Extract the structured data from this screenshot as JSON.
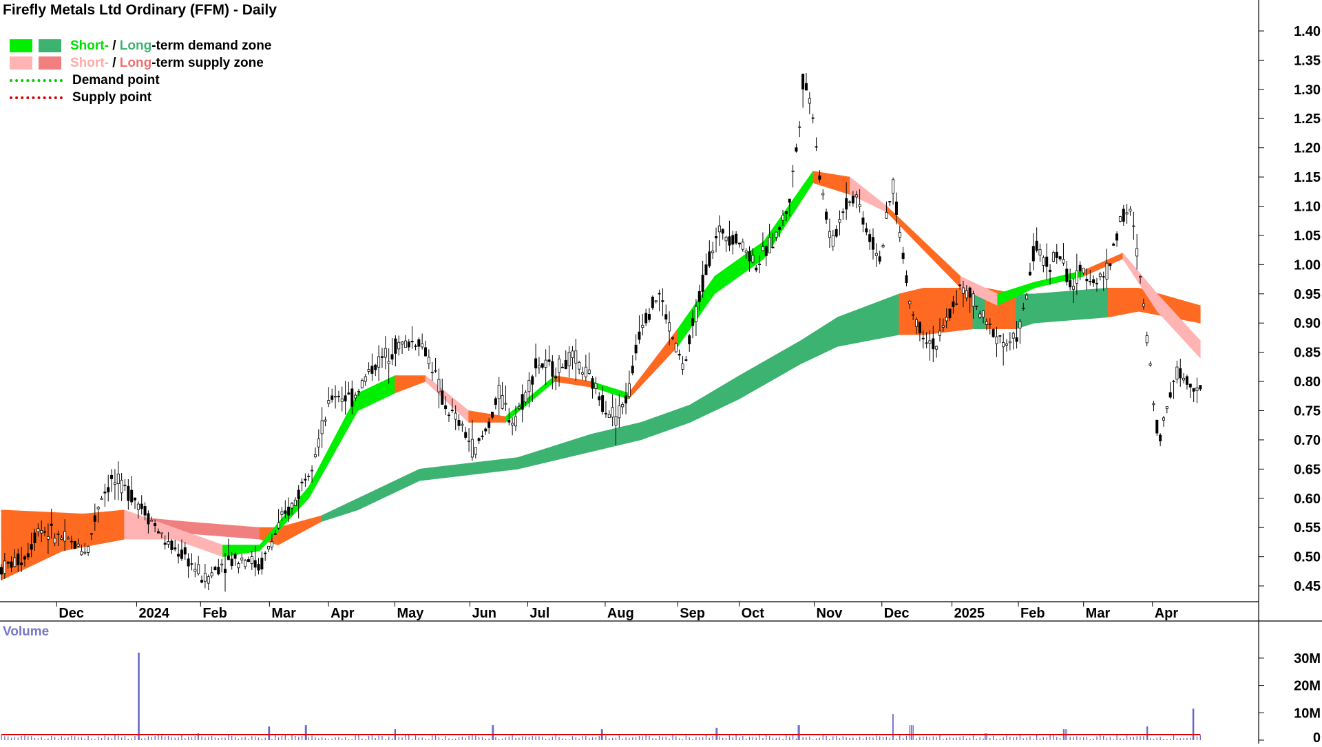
{
  "title": "Firefly Metals Ltd Ordinary (FFM) - Daily",
  "legend": {
    "demand_short": "Short-",
    "demand_sep": " / ",
    "demand_long": "Long",
    "demand_rest": "-term demand zone",
    "supply_short": "Short-",
    "supply_sep": " / ",
    "supply_long": "Long",
    "supply_rest": "-term supply zone",
    "demand_point": "Demand point",
    "supply_point": "Supply point"
  },
  "colors": {
    "short_demand": "#00ee00",
    "long_demand": "#3cb371",
    "short_supply": "#ffb3b3",
    "long_supply": "#f08080",
    "orange_zone": "#ff6a22",
    "demand_point": "#00cc00",
    "supply_point": "#dd0000",
    "volume_bar": "#6666cc",
    "volume_avg": "#dd0000"
  },
  "volume_label": "Volume",
  "chart_data": [
    {
      "type": "candlestick",
      "title": "Firefly Metals Ltd Ordinary (FFM) - Daily",
      "y_ticks": [
        "1.40",
        "1.35",
        "1.30",
        "1.25",
        "1.20",
        "1.15",
        "1.10",
        "1.05",
        "1.00",
        "0.95",
        "0.90",
        "0.85",
        "0.80",
        "0.75",
        "0.70",
        "0.65",
        "0.60",
        "0.55",
        "0.50",
        "0.45"
      ],
      "y_range": [
        0.43,
        1.42
      ],
      "x_ticks": [
        {
          "label": "Dec",
          "t": 0.045
        },
        {
          "label": "2024",
          "t": 0.11
        },
        {
          "label": "Feb",
          "t": 0.162
        },
        {
          "label": "Mar",
          "t": 0.218
        },
        {
          "label": "Apr",
          "t": 0.266
        },
        {
          "label": "May",
          "t": 0.32
        },
        {
          "label": "Jun",
          "t": 0.381
        },
        {
          "label": "Jul",
          "t": 0.428
        },
        {
          "label": "Aug",
          "t": 0.491
        },
        {
          "label": "Sep",
          "t": 0.55
        },
        {
          "label": "Oct",
          "t": 0.6
        },
        {
          "label": "Nov",
          "t": 0.661
        },
        {
          "label": "Dec",
          "t": 0.716
        },
        {
          "label": "2025",
          "t": 0.773
        },
        {
          "label": "Feb",
          "t": 0.827
        },
        {
          "label": "Mar",
          "t": 0.88
        },
        {
          "label": "Apr",
          "t": 0.936
        }
      ],
      "price_path": [
        [
          0.0,
          0.48
        ],
        [
          0.02,
          0.5
        ],
        [
          0.03,
          0.55
        ],
        [
          0.05,
          0.53
        ],
        [
          0.07,
          0.51
        ],
        [
          0.08,
          0.6
        ],
        [
          0.09,
          0.63
        ],
        [
          0.105,
          0.61
        ],
        [
          0.12,
          0.57
        ],
        [
          0.135,
          0.52
        ],
        [
          0.15,
          0.5
        ],
        [
          0.165,
          0.46
        ],
        [
          0.18,
          0.49
        ],
        [
          0.2,
          0.5
        ],
        [
          0.21,
          0.48
        ],
        [
          0.225,
          0.55
        ],
        [
          0.24,
          0.6
        ],
        [
          0.255,
          0.68
        ],
        [
          0.27,
          0.78
        ],
        [
          0.285,
          0.77
        ],
        [
          0.3,
          0.82
        ],
        [
          0.32,
          0.86
        ],
        [
          0.34,
          0.87
        ],
        [
          0.35,
          0.83
        ],
        [
          0.36,
          0.76
        ],
        [
          0.375,
          0.72
        ],
        [
          0.385,
          0.68
        ],
        [
          0.395,
          0.72
        ],
        [
          0.405,
          0.78
        ],
        [
          0.415,
          0.73
        ],
        [
          0.425,
          0.77
        ],
        [
          0.435,
          0.83
        ],
        [
          0.45,
          0.82
        ],
        [
          0.465,
          0.84
        ],
        [
          0.48,
          0.8
        ],
        [
          0.49,
          0.76
        ],
        [
          0.5,
          0.74
        ],
        [
          0.51,
          0.78
        ],
        [
          0.52,
          0.9
        ],
        [
          0.535,
          0.95
        ],
        [
          0.545,
          0.88
        ],
        [
          0.555,
          0.82
        ],
        [
          0.565,
          0.92
        ],
        [
          0.575,
          1.01
        ],
        [
          0.585,
          1.06
        ],
        [
          0.6,
          1.04
        ],
        [
          0.615,
          1.0
        ],
        [
          0.63,
          1.05
        ],
        [
          0.64,
          1.1
        ],
        [
          0.648,
          1.22
        ],
        [
          0.652,
          1.32
        ],
        [
          0.66,
          1.26
        ],
        [
          0.665,
          1.16
        ],
        [
          0.675,
          1.03
        ],
        [
          0.685,
          1.1
        ],
        [
          0.695,
          1.12
        ],
        [
          0.705,
          1.05
        ],
        [
          0.715,
          1.01
        ],
        [
          0.725,
          1.14
        ],
        [
          0.732,
          1.03
        ],
        [
          0.74,
          0.92
        ],
        [
          0.75,
          0.88
        ],
        [
          0.76,
          0.86
        ],
        [
          0.77,
          0.91
        ],
        [
          0.78,
          0.96
        ],
        [
          0.79,
          0.94
        ],
        [
          0.8,
          0.9
        ],
        [
          0.81,
          0.88
        ],
        [
          0.82,
          0.86
        ],
        [
          0.83,
          0.9
        ],
        [
          0.84,
          1.03
        ],
        [
          0.85,
          1.0
        ],
        [
          0.86,
          1.02
        ],
        [
          0.87,
          0.96
        ],
        [
          0.88,
          0.99
        ],
        [
          0.89,
          0.97
        ],
        [
          0.9,
          0.99
        ],
        [
          0.91,
          1.08
        ],
        [
          0.918,
          1.09
        ],
        [
          0.925,
          1.0
        ],
        [
          0.932,
          0.87
        ],
        [
          0.938,
          0.75
        ],
        [
          0.942,
          0.7
        ],
        [
          0.948,
          0.76
        ],
        [
          0.955,
          0.82
        ],
        [
          0.965,
          0.8
        ],
        [
          0.975,
          0.79
        ]
      ],
      "short_zone": [
        {
          "t": 0.0,
          "lo": 0.46,
          "hi": 0.57,
          "color": "orange"
        },
        {
          "t": 0.05,
          "lo": 0.51,
          "hi": 0.57,
          "color": "orange"
        },
        {
          "t": 0.1,
          "lo": 0.53,
          "hi": 0.58,
          "color": "orange"
        },
        {
          "t": 0.14,
          "lo": 0.53,
          "hi": 0.55,
          "color": "pink"
        },
        {
          "t": 0.18,
          "lo": 0.5,
          "hi": 0.52,
          "color": "pink"
        },
        {
          "t": 0.21,
          "lo": 0.51,
          "hi": 0.52,
          "color": "green"
        },
        {
          "t": 0.25,
          "lo": 0.6,
          "hi": 0.62,
          "color": "green"
        },
        {
          "t": 0.29,
          "lo": 0.75,
          "hi": 0.78,
          "color": "green"
        },
        {
          "t": 0.32,
          "lo": 0.78,
          "hi": 0.81,
          "color": "green"
        },
        {
          "t": 0.345,
          "lo": 0.8,
          "hi": 0.81,
          "color": "orange"
        },
        {
          "t": 0.38,
          "lo": 0.73,
          "hi": 0.75,
          "color": "pink"
        },
        {
          "t": 0.41,
          "lo": 0.73,
          "hi": 0.74,
          "color": "orange"
        },
        {
          "t": 0.45,
          "lo": 0.8,
          "hi": 0.81,
          "color": "green"
        },
        {
          "t": 0.48,
          "lo": 0.79,
          "hi": 0.8,
          "color": "orange"
        },
        {
          "t": 0.51,
          "lo": 0.77,
          "hi": 0.78,
          "color": "green"
        },
        {
          "t": 0.55,
          "lo": 0.86,
          "hi": 0.89,
          "color": "orange"
        },
        {
          "t": 0.58,
          "lo": 0.95,
          "hi": 0.98,
          "color": "green"
        },
        {
          "t": 0.62,
          "lo": 1.01,
          "hi": 1.04,
          "color": "green"
        },
        {
          "t": 0.66,
          "lo": 1.14,
          "hi": 1.16,
          "color": "green"
        },
        {
          "t": 0.69,
          "lo": 1.12,
          "hi": 1.15,
          "color": "orange"
        },
        {
          "t": 0.72,
          "lo": 1.09,
          "hi": 1.1,
          "color": "pink"
        },
        {
          "t": 0.78,
          "lo": 0.96,
          "hi": 0.98,
          "color": "orange"
        },
        {
          "t": 0.81,
          "lo": 0.93,
          "hi": 0.95,
          "color": "pink"
        },
        {
          "t": 0.84,
          "lo": 0.96,
          "hi": 0.97,
          "color": "green"
        },
        {
          "t": 0.88,
          "lo": 0.98,
          "hi": 0.99,
          "color": "green"
        },
        {
          "t": 0.912,
          "lo": 1.01,
          "hi": 1.02,
          "color": "orange"
        },
        {
          "t": 0.94,
          "lo": 0.92,
          "hi": 0.95,
          "color": "pink"
        },
        {
          "t": 0.975,
          "lo": 0.84,
          "hi": 0.87,
          "color": "pink"
        }
      ],
      "long_zone": [
        {
          "t": 0.0,
          "lo": 0.53,
          "hi": 0.58,
          "color": "orange"
        },
        {
          "t": 0.1,
          "lo": 0.54,
          "hi": 0.57,
          "color": "orange"
        },
        {
          "t": 0.15,
          "lo": 0.54,
          "hi": 0.56,
          "color": "pink"
        },
        {
          "t": 0.21,
          "lo": 0.53,
          "hi": 0.55,
          "color": "pink"
        },
        {
          "t": 0.225,
          "lo": 0.52,
          "hi": 0.55,
          "color": "orange"
        },
        {
          "t": 0.26,
          "lo": 0.56,
          "hi": 0.57,
          "color": "orange"
        },
        {
          "t": 0.29,
          "lo": 0.58,
          "hi": 0.6,
          "color": "green"
        },
        {
          "t": 0.34,
          "lo": 0.63,
          "hi": 0.65,
          "color": "green"
        },
        {
          "t": 0.38,
          "lo": 0.64,
          "hi": 0.66,
          "color": "green"
        },
        {
          "t": 0.42,
          "lo": 0.65,
          "hi": 0.67,
          "color": "green"
        },
        {
          "t": 0.48,
          "lo": 0.68,
          "hi": 0.71,
          "color": "green"
        },
        {
          "t": 0.52,
          "lo": 0.7,
          "hi": 0.73,
          "color": "green"
        },
        {
          "t": 0.56,
          "lo": 0.73,
          "hi": 0.76,
          "color": "green"
        },
        {
          "t": 0.6,
          "lo": 0.77,
          "hi": 0.81,
          "color": "green"
        },
        {
          "t": 0.65,
          "lo": 0.83,
          "hi": 0.87,
          "color": "green"
        },
        {
          "t": 0.68,
          "lo": 0.86,
          "hi": 0.91,
          "color": "green"
        },
        {
          "t": 0.73,
          "lo": 0.88,
          "hi": 0.95,
          "color": "green"
        },
        {
          "t": 0.75,
          "lo": 0.88,
          "hi": 0.96,
          "color": "orange"
        },
        {
          "t": 0.79,
          "lo": 0.89,
          "hi": 0.96,
          "color": "orange"
        },
        {
          "t": 0.8,
          "lo": 0.89,
          "hi": 0.96,
          "color": "green"
        },
        {
          "t": 0.825,
          "lo": 0.89,
          "hi": 0.95,
          "color": "orange"
        },
        {
          "t": 0.84,
          "lo": 0.9,
          "hi": 0.95,
          "color": "green"
        },
        {
          "t": 0.9,
          "lo": 0.91,
          "hi": 0.96,
          "color": "green"
        },
        {
          "t": 0.925,
          "lo": 0.92,
          "hi": 0.96,
          "color": "orange"
        },
        {
          "t": 0.975,
          "lo": 0.9,
          "hi": 0.93,
          "color": "orange"
        }
      ],
      "volume": {
        "y_ticks": [
          "30M",
          "20M",
          "10M",
          "0"
        ],
        "y_range": [
          0,
          34
        ],
        "spikes": [
          [
            0.112,
            32.0
          ],
          [
            0.16,
            2.5
          ],
          [
            0.218,
            5.0
          ],
          [
            0.248,
            5.5
          ],
          [
            0.32,
            4.0
          ],
          [
            0.4,
            5.5
          ],
          [
            0.488,
            4.0
          ],
          [
            0.582,
            4.5
          ],
          [
            0.648,
            5.5
          ],
          [
            0.725,
            9.5
          ],
          [
            0.74,
            5.5
          ],
          [
            0.8,
            2.5
          ],
          [
            0.865,
            4.0
          ],
          [
            0.932,
            5.0
          ],
          [
            0.969,
            11.5
          ]
        ],
        "avg_level": 2.0
      }
    }
  ]
}
